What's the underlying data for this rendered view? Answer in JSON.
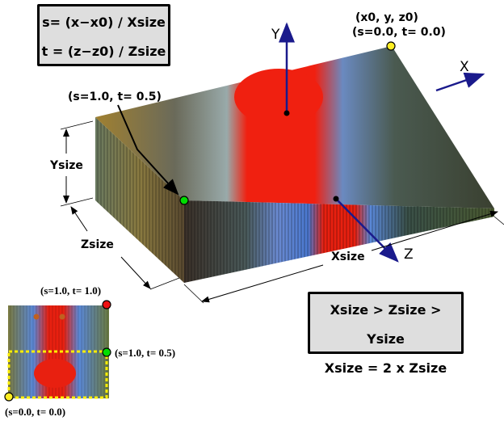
{
  "formula_box": {
    "line1": "s= (x−x0) / Xsize",
    "line2": "t = (z−z0) / Zsize"
  },
  "relation_box": {
    "line1": "Xsize > Zsize > Ysize",
    "line2": "Xsize = 2 x Zsize"
  },
  "axes": {
    "x": "X",
    "y": "Y",
    "z": "Z"
  },
  "dimensions": {
    "xsize": "Xsize",
    "ysize": "Ysize",
    "zsize": "Zsize"
  },
  "origin_label": {
    "line1": "(x0, y, z0)",
    "line2": "(s=0.0, t= 0.0)"
  },
  "box_point_label": "(s=1.0, t= 0.5)",
  "texture": {
    "top_right": "(s=1.0, t= 1.0)",
    "mid_right": "(s=1.0, t= 0.5)",
    "bottom_left": "(s=0.0, t= 0.0)"
  },
  "colors": {
    "origin": "#ffee22",
    "mid": "#00dd00",
    "corner": "#ee1111",
    "axis": "#1a1a8c",
    "dash": "#ffee00"
  }
}
